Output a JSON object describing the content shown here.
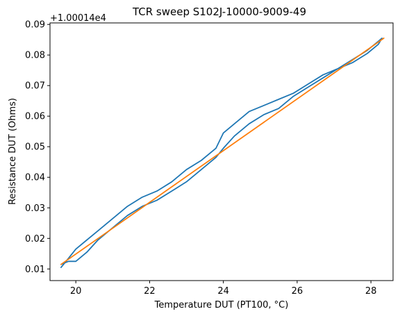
{
  "chart_data": {
    "type": "line",
    "title": "TCR sweep S102J-10000-9009-49",
    "xlabel": "Temperature DUT (PT100, °C)",
    "ylabel": "Resistance DUT (Ohms)",
    "offset_label": "+1.00014e4",
    "xlim": [
      19.3,
      28.6
    ],
    "ylim": [
      0.0062,
      0.0905
    ],
    "grid": false,
    "xticks": [
      20,
      22,
      24,
      26,
      28
    ],
    "xtick_labels": [
      "20",
      "22",
      "24",
      "26",
      "28"
    ],
    "yticks": [
      0.01,
      0.02,
      0.03,
      0.04,
      0.05,
      0.06,
      0.07,
      0.08,
      0.09
    ],
    "ytick_labels": [
      "0.01",
      "0.02",
      "0.03",
      "0.04",
      "0.05",
      "0.06",
      "0.07",
      "0.08",
      "0.09"
    ],
    "series": [
      {
        "color": "#1f77b4",
        "x": [
          19.6,
          19.8,
          20.0,
          20.3,
          20.6,
          21.0,
          21.4,
          21.8,
          22.2,
          22.6,
          23.0,
          23.4,
          23.8,
          24.0,
          24.3,
          24.7,
          25.1,
          25.5,
          25.9,
          26.3,
          26.7,
          27.1,
          27.5,
          27.9,
          28.2,
          28.3,
          28.2,
          27.9,
          27.5,
          27.1,
          26.7,
          26.3,
          25.9,
          25.5,
          25.1,
          24.7,
          24.3,
          24.0,
          23.8,
          23.4,
          23.0,
          22.6,
          22.2,
          21.8,
          21.4,
          21.0,
          20.6,
          20.3,
          20.0,
          19.8,
          19.6
        ],
        "y": [
          0.0105,
          0.0135,
          0.0165,
          0.0195,
          0.0225,
          0.0265,
          0.0305,
          0.0335,
          0.0355,
          0.0385,
          0.0425,
          0.0455,
          0.0495,
          0.0545,
          0.0575,
          0.0615,
          0.0635,
          0.0655,
          0.0675,
          0.0705,
          0.0735,
          0.0755,
          0.0775,
          0.0805,
          0.0835,
          0.0855,
          0.0845,
          0.0815,
          0.0785,
          0.0755,
          0.0725,
          0.0695,
          0.0665,
          0.0625,
          0.0605,
          0.0575,
          0.0535,
          0.0495,
          0.0465,
          0.0425,
          0.0385,
          0.0355,
          0.0325,
          0.0305,
          0.0275,
          0.0235,
          0.0195,
          0.0155,
          0.0125,
          0.0125,
          0.0115
        ]
      },
      {
        "color": "#ff7f0e",
        "x": [
          19.6,
          28.35
        ],
        "y": [
          0.0115,
          0.0855
        ]
      }
    ]
  }
}
